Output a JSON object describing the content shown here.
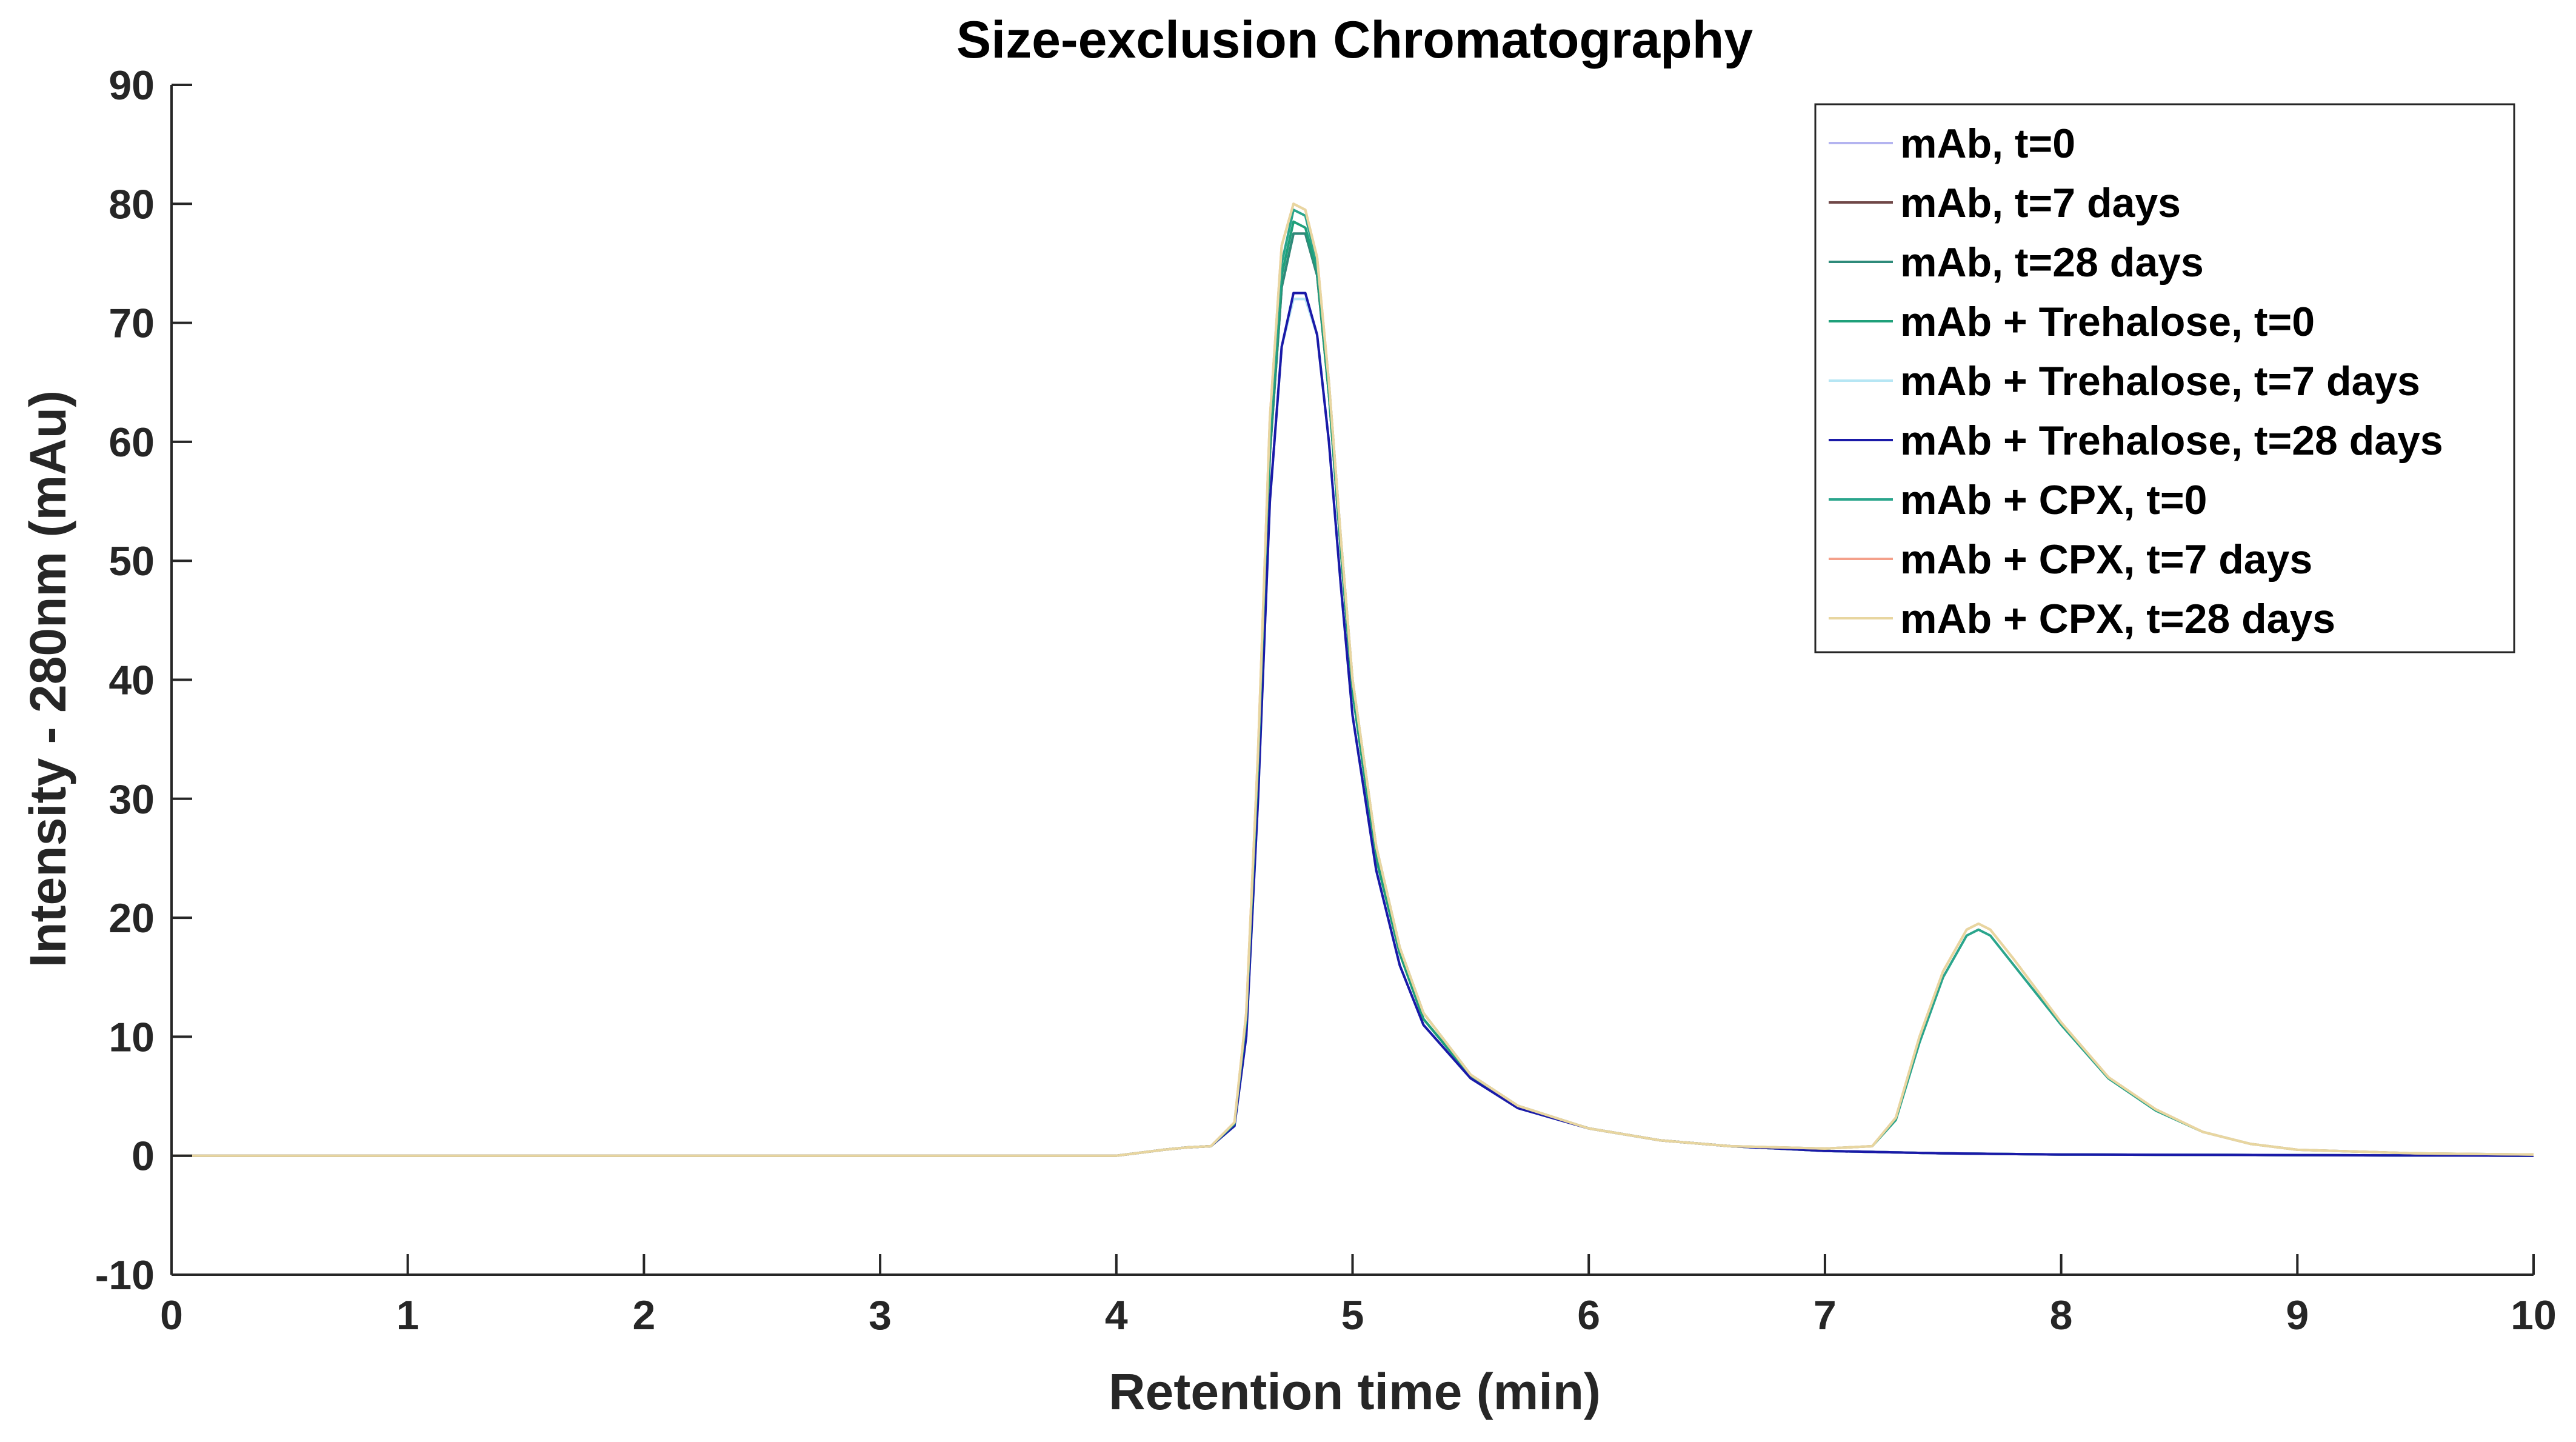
{
  "chart_data": {
    "type": "line",
    "title": "Size-exclusion Chromatography",
    "xlabel": "Retention time (min)",
    "ylabel": "Intensity - 280nm (mAu)",
    "xlim": [
      0,
      10
    ],
    "ylim": [
      -10,
      90
    ],
    "xticks": [
      0,
      1,
      2,
      3,
      4,
      5,
      6,
      7,
      8,
      9,
      10
    ],
    "yticks": [
      -10,
      0,
      10,
      20,
      30,
      40,
      50,
      60,
      70,
      80,
      90
    ],
    "grid": false,
    "legend_position": "top-right",
    "series": [
      {
        "name": "mAb, t=0",
        "color": "#b4b4f0",
        "x": [
          0,
          4.0,
          4.2,
          4.3,
          4.4,
          4.5,
          4.55,
          4.6,
          4.65,
          4.7,
          4.75,
          4.8,
          4.85,
          4.9,
          4.95,
          5.0,
          5.1,
          5.2,
          5.3,
          5.5,
          5.7,
          6.0,
          6.3,
          6.6,
          7.0,
          7.5,
          8.0,
          9.0,
          10.0
        ],
        "y": [
          0,
          0,
          0.5,
          0.7,
          0.8,
          2.5,
          10,
          30,
          55,
          68,
          72,
          72,
          69,
          60,
          48,
          37,
          24,
          16,
          11,
          6.5,
          4,
          2.3,
          1.3,
          0.8,
          0.4,
          0.2,
          0.1,
          0.05,
          0
        ]
      },
      {
        "name": "mAb, t=7 days",
        "color": "#704848",
        "x": [
          0,
          4.0,
          4.2,
          4.3,
          4.4,
          4.5,
          4.55,
          4.6,
          4.65,
          4.7,
          4.75,
          4.8,
          4.85,
          4.9,
          4.95,
          5.0,
          5.1,
          5.2,
          5.3,
          5.5,
          5.7,
          6.0,
          6.3,
          6.6,
          7.0,
          7.5,
          8.0,
          9.0,
          10.0
        ],
        "y": [
          0,
          0,
          0.5,
          0.7,
          0.8,
          2.6,
          11,
          32,
          59,
          73,
          77.5,
          77.5,
          74,
          64,
          51,
          39,
          25,
          17,
          11.5,
          6.7,
          4.1,
          2.3,
          1.3,
          0.8,
          0.4,
          0.2,
          0.1,
          0.05,
          0
        ]
      },
      {
        "name": "mAb, t=28 days",
        "color": "#2e8b7a",
        "x": [
          0,
          4.0,
          4.2,
          4.3,
          4.4,
          4.5,
          4.55,
          4.6,
          4.65,
          4.7,
          4.75,
          4.8,
          4.85,
          4.9,
          4.95,
          5.0,
          5.1,
          5.2,
          5.3,
          5.5,
          5.7,
          6.0,
          6.3,
          6.6,
          7.0,
          7.5,
          8.0,
          9.0,
          10.0
        ],
        "y": [
          0,
          0,
          0.5,
          0.7,
          0.8,
          2.6,
          11,
          32,
          59,
          73,
          77.5,
          77.5,
          74,
          64,
          51,
          39,
          25,
          17,
          11.5,
          6.7,
          4.1,
          2.3,
          1.3,
          0.8,
          0.4,
          0.2,
          0.1,
          0.05,
          0
        ]
      },
      {
        "name": "mAb + Trehalose, t=0",
        "color": "#1fa07a",
        "x": [
          0,
          4.0,
          4.2,
          4.3,
          4.4,
          4.5,
          4.55,
          4.6,
          4.65,
          4.7,
          4.75,
          4.8,
          4.85,
          4.9,
          4.95,
          5.0,
          5.1,
          5.2,
          5.3,
          5.5,
          5.7,
          6.0,
          6.3,
          6.6,
          7.0,
          7.5,
          8.0,
          9.0,
          10.0
        ],
        "y": [
          0,
          0,
          0.5,
          0.7,
          0.8,
          2.6,
          11,
          32,
          60,
          74,
          78.5,
          78,
          74.5,
          64,
          51,
          39,
          25,
          17,
          11.5,
          6.7,
          4.1,
          2.3,
          1.3,
          0.8,
          0.4,
          0.2,
          0.1,
          0.05,
          0
        ]
      },
      {
        "name": "mAb + Trehalose, t=7 days",
        "color": "#b6e6f4",
        "x": [
          0,
          4.0,
          4.2,
          4.3,
          4.4,
          4.5,
          4.55,
          4.6,
          4.65,
          4.7,
          4.75,
          4.8,
          4.85,
          4.9,
          4.95,
          5.0,
          5.1,
          5.2,
          5.3,
          5.5,
          5.7,
          6.0,
          6.3,
          6.6,
          7.0,
          7.5,
          8.0,
          9.0,
          10.0
        ],
        "y": [
          0,
          0,
          0.5,
          0.7,
          0.8,
          2.5,
          10,
          30,
          55,
          68,
          72,
          72,
          69,
          60,
          48,
          37,
          24,
          16,
          11,
          6.5,
          4,
          2.3,
          1.3,
          0.8,
          0.4,
          0.2,
          0.1,
          0.05,
          0
        ]
      },
      {
        "name": "mAb + Trehalose, t=28 days",
        "color": "#1a1aa8",
        "x": [
          0,
          4.0,
          4.2,
          4.3,
          4.4,
          4.5,
          4.55,
          4.6,
          4.65,
          4.7,
          4.75,
          4.8,
          4.85,
          4.9,
          4.95,
          5.0,
          5.1,
          5.2,
          5.3,
          5.5,
          5.7,
          6.0,
          6.3,
          6.6,
          7.0,
          7.5,
          8.0,
          9.0,
          10.0
        ],
        "y": [
          0,
          0,
          0.5,
          0.7,
          0.8,
          2.5,
          10,
          30,
          55,
          68,
          72.5,
          72.5,
          69,
          60,
          48,
          37,
          24,
          16,
          11,
          6.5,
          4,
          2.3,
          1.3,
          0.8,
          0.4,
          0.2,
          0.1,
          0.05,
          0
        ]
      },
      {
        "name": "mAb + CPX, t=0",
        "color": "#2aa58c",
        "x": [
          0,
          4.0,
          4.2,
          4.3,
          4.4,
          4.5,
          4.55,
          4.6,
          4.65,
          4.7,
          4.75,
          4.8,
          4.85,
          4.9,
          4.95,
          5.0,
          5.1,
          5.2,
          5.3,
          5.5,
          5.7,
          6.0,
          6.3,
          6.6,
          7.0,
          7.2,
          7.3,
          7.4,
          7.5,
          7.6,
          7.65,
          7.7,
          7.8,
          8.0,
          8.2,
          8.4,
          8.6,
          8.8,
          9.0,
          9.5,
          10.0
        ],
        "y": [
          0,
          0,
          0.5,
          0.7,
          0.8,
          2.7,
          11.5,
          33,
          61,
          75,
          79.5,
          79,
          75,
          65,
          52,
          40,
          26,
          17.5,
          12,
          6.8,
          4.2,
          2.3,
          1.3,
          0.8,
          0.6,
          0.8,
          3,
          9.5,
          15,
          18.5,
          19,
          18.5,
          16,
          11,
          6.5,
          3.8,
          2,
          1,
          0.5,
          0.2,
          0.1
        ]
      },
      {
        "name": "mAb + CPX, t=7 days",
        "color": "#f4a08a",
        "x": [
          0,
          4.0,
          4.2,
          4.3,
          4.4,
          4.5,
          4.55,
          4.6,
          4.65,
          4.7,
          4.75,
          4.8,
          4.85,
          4.9,
          4.95,
          5.0,
          5.1,
          5.2,
          5.3,
          5.5,
          5.7,
          6.0,
          6.3,
          6.6,
          7.0,
          7.2,
          7.3,
          7.4,
          7.5,
          7.6,
          7.65,
          7.7,
          7.8,
          8.0,
          8.2,
          8.4,
          8.6,
          8.8,
          9.0,
          9.5,
          10.0
        ],
        "y": [
          0,
          0,
          0.5,
          0.7,
          0.8,
          2.8,
          12,
          34,
          62,
          76.5,
          80,
          79.5,
          75.5,
          65,
          52,
          40,
          26,
          17.5,
          12,
          6.8,
          4.2,
          2.3,
          1.3,
          0.8,
          0.6,
          0.8,
          3.2,
          10,
          15.5,
          19,
          19.5,
          19,
          16.5,
          11.2,
          6.6,
          3.9,
          2,
          1,
          0.5,
          0.2,
          0.1
        ]
      },
      {
        "name": "mAb + CPX, t=28 days",
        "color": "#e8d6a0",
        "x": [
          0,
          4.0,
          4.2,
          4.3,
          4.4,
          4.5,
          4.55,
          4.6,
          4.65,
          4.7,
          4.75,
          4.8,
          4.85,
          4.9,
          4.95,
          5.0,
          5.1,
          5.2,
          5.3,
          5.5,
          5.7,
          6.0,
          6.3,
          6.6,
          7.0,
          7.2,
          7.3,
          7.4,
          7.5,
          7.6,
          7.65,
          7.7,
          7.8,
          8.0,
          8.2,
          8.4,
          8.6,
          8.8,
          9.0,
          9.5,
          10.0
        ],
        "y": [
          0,
          0,
          0.5,
          0.7,
          0.8,
          2.8,
          12,
          34,
          62,
          76.5,
          80,
          79.5,
          75.5,
          65,
          52,
          40,
          26,
          17.5,
          12,
          6.8,
          4.2,
          2.3,
          1.3,
          0.8,
          0.6,
          0.8,
          3.2,
          10,
          15.5,
          19,
          19.5,
          19,
          16.5,
          11.2,
          6.6,
          3.9,
          2,
          1,
          0.5,
          0.2,
          0.1
        ]
      }
    ]
  }
}
